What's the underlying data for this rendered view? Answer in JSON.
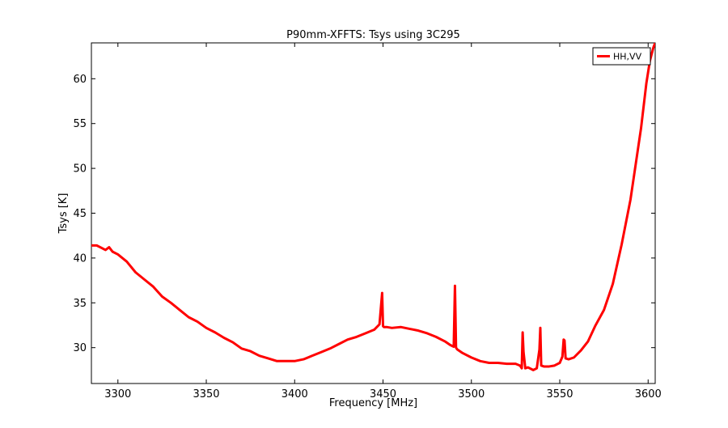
{
  "chart_data": {
    "type": "line",
    "title": "P90mm-XFFTS: Tsys using 3C295",
    "xlabel": "Frequency [MHz]",
    "ylabel": "Tsys [K]",
    "xlim": [
      3285,
      3604
    ],
    "ylim": [
      26,
      64
    ],
    "x_ticks": [
      3300,
      3350,
      3400,
      3450,
      3500,
      3550,
      3600
    ],
    "y_ticks": [
      30,
      35,
      40,
      45,
      50,
      55,
      60
    ],
    "grid": false,
    "legend": {
      "position": "top-right",
      "entries": [
        "HH,VV"
      ]
    },
    "series": [
      {
        "name": "HH,VV",
        "color": "#ff0000",
        "x": [
          3285,
          3288,
          3291,
          3293,
          3295,
          3297,
          3300,
          3305,
          3310,
          3315,
          3320,
          3325,
          3330,
          3335,
          3340,
          3345,
          3350,
          3355,
          3360,
          3365,
          3370,
          3375,
          3380,
          3385,
          3390,
          3395,
          3400,
          3405,
          3410,
          3415,
          3420,
          3425,
          3430,
          3435,
          3440,
          3445,
          3448,
          3449.5,
          3450,
          3450.5,
          3452,
          3455,
          3460,
          3465,
          3470,
          3475,
          3480,
          3485,
          3488,
          3490,
          3490.7,
          3491,
          3491.3,
          3492,
          3495,
          3500,
          3505,
          3510,
          3515,
          3520,
          3525,
          3527.5,
          3528.5,
          3529,
          3529.5,
          3530.5,
          3532,
          3535,
          3537,
          3538.5,
          3539,
          3539.5,
          3541,
          3544,
          3547,
          3550,
          3551.5,
          3552.2,
          3552.7,
          3553.3,
          3555,
          3558,
          3562,
          3566,
          3570,
          3575,
          3580,
          3585,
          3590,
          3593,
          3596,
          3599,
          3601,
          3603,
          3604
        ],
        "values": [
          41.4,
          41.4,
          41.1,
          40.9,
          41.2,
          40.7,
          40.4,
          39.6,
          38.4,
          37.6,
          36.8,
          35.7,
          35.0,
          34.2,
          33.4,
          32.9,
          32.2,
          31.7,
          31.1,
          30.6,
          29.9,
          29.6,
          29.1,
          28.8,
          28.5,
          28.5,
          28.5,
          28.7,
          29.1,
          29.5,
          29.9,
          30.4,
          30.9,
          31.2,
          31.6,
          32.0,
          32.6,
          36.1,
          32.4,
          32.3,
          32.3,
          32.2,
          32.3,
          32.1,
          31.9,
          31.6,
          31.2,
          30.7,
          30.3,
          30.1,
          36.9,
          33.5,
          30.0,
          29.8,
          29.4,
          28.9,
          28.5,
          28.3,
          28.3,
          28.2,
          28.2,
          28.0,
          27.7,
          31.7,
          29.5,
          27.7,
          27.8,
          27.5,
          27.7,
          29.8,
          32.2,
          28.0,
          27.9,
          27.9,
          28.0,
          28.3,
          29.0,
          30.9,
          30.8,
          28.8,
          28.7,
          28.9,
          29.7,
          30.7,
          32.4,
          34.2,
          37.1,
          41.5,
          46.5,
          50.5,
          54.5,
          59.5,
          62.0,
          63.5,
          64.0
        ]
      }
    ]
  }
}
